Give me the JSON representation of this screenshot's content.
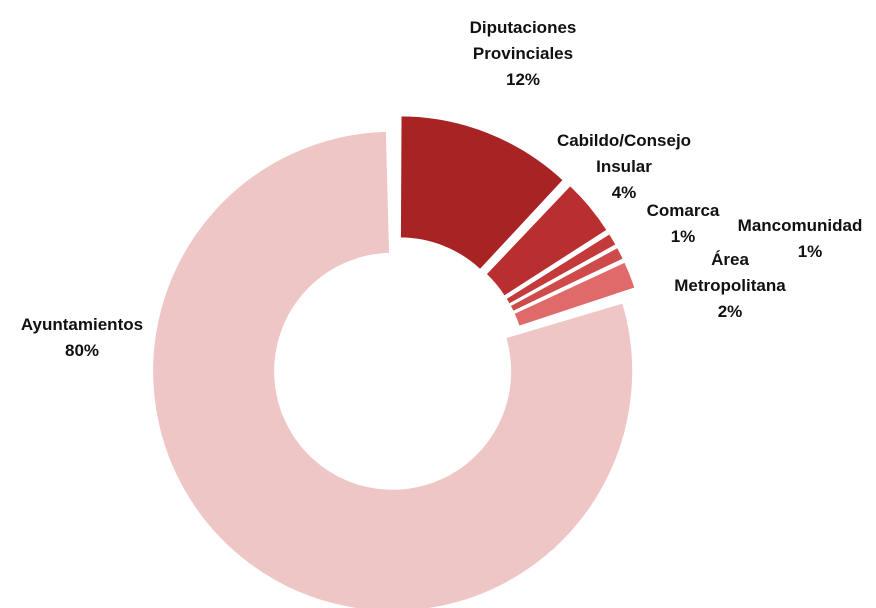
{
  "chart_data": {
    "type": "donut",
    "categories": [
      "Diputaciones Provinciales",
      "Cabildo/Consejo Insular",
      "Comarca",
      "Mancomunidad",
      "Área Metropolitana",
      "Ayuntamientos"
    ],
    "values": [
      12,
      4,
      1,
      1,
      2,
      80
    ],
    "value_labels": [
      "12%",
      "4%",
      "1%",
      "1%",
      "2%",
      "80%"
    ],
    "colors": [
      "#a82424",
      "#b92e2e",
      "#c43a3a",
      "#cf4a4a",
      "#e06a6a",
      "#efc6c6"
    ]
  }
}
